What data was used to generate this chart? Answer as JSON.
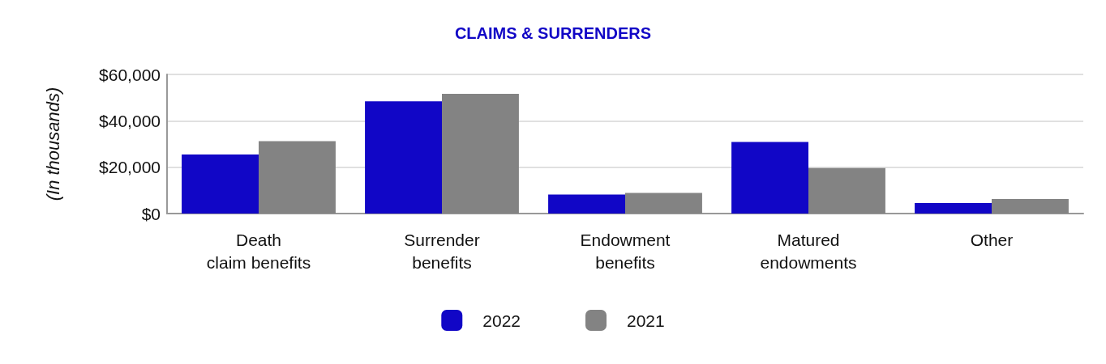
{
  "chart_data": {
    "type": "bar",
    "title": "CLAIMS & SURRENDERS",
    "ylabel": "(In thousands)",
    "categories": [
      "Death\nclaim benefits",
      "Surrender\nbenefits",
      "Endowment\nbenefits",
      "Matured\nendowments",
      "Other"
    ],
    "series": [
      {
        "name": "2022",
        "color": "#1106c6",
        "values": [
          25500,
          48400,
          8200,
          30900,
          4500
        ]
      },
      {
        "name": "2021",
        "color": "#838383",
        "values": [
          31200,
          51600,
          8900,
          19600,
          6300
        ]
      }
    ],
    "ylim": [
      0,
      60000
    ],
    "yticks": [
      {
        "value": 0,
        "label": "$0"
      },
      {
        "value": 20000,
        "label": "$20,000"
      },
      {
        "value": 40000,
        "label": "$40,000"
      },
      {
        "value": 60000,
        "label": "$60,000"
      }
    ],
    "grid": "y",
    "legend": "bottom"
  }
}
